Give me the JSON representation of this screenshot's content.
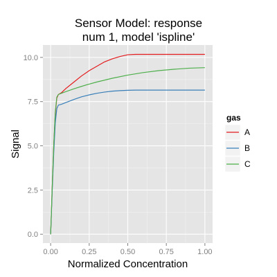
{
  "chart_data": {
    "type": "line",
    "title_lines": [
      "Sensor Model: response",
      "num 1, model 'ispline'"
    ],
    "xlabel": "Normalized Concentration",
    "ylabel": "Signal",
    "xlim": [
      -0.05,
      1.05
    ],
    "ylim": [
      -0.5,
      10.7
    ],
    "x_ticks": [
      0,
      0.25,
      0.5,
      0.75,
      1
    ],
    "x_tick_labels": [
      "0.00",
      "0.25",
      "0.50",
      "0.75",
      "1.00"
    ],
    "y_ticks": [
      0,
      2.5,
      5,
      7.5,
      10
    ],
    "y_tick_labels": [
      "0.0",
      "2.5",
      "5.0",
      "7.5",
      "10.0"
    ],
    "grid": true,
    "legend": {
      "title": "gas",
      "position": "right"
    },
    "series": [
      {
        "name": "A",
        "color": "#e41a1c",
        "x": [
          0,
          0.01,
          0.02,
          0.03,
          0.04,
          0.05,
          0.07,
          0.1,
          0.15,
          0.2,
          0.25,
          0.3,
          0.35,
          0.4,
          0.45,
          0.5,
          0.55,
          0.6,
          0.7,
          0.8,
          0.9,
          1.0
        ],
        "y": [
          0,
          2.6,
          5.0,
          6.8,
          7.7,
          7.9,
          8.0,
          8.25,
          8.6,
          8.95,
          9.25,
          9.5,
          9.75,
          9.92,
          10.05,
          10.15,
          10.17,
          10.17,
          10.17,
          10.17,
          10.17,
          10.17
        ]
      },
      {
        "name": "B",
        "color": "#377eb8",
        "x": [
          0,
          0.01,
          0.02,
          0.03,
          0.04,
          0.05,
          0.07,
          0.1,
          0.15,
          0.2,
          0.25,
          0.3,
          0.35,
          0.4,
          0.45,
          0.5,
          0.55,
          0.6,
          0.7,
          0.8,
          0.9,
          1.0
        ],
        "y": [
          0,
          2.4,
          4.6,
          6.3,
          7.1,
          7.3,
          7.35,
          7.45,
          7.62,
          7.77,
          7.88,
          7.97,
          8.04,
          8.09,
          8.12,
          8.14,
          8.15,
          8.15,
          8.15,
          8.15,
          8.15,
          8.15
        ]
      },
      {
        "name": "C",
        "color": "#4daf4a",
        "x": [
          0,
          0.01,
          0.02,
          0.03,
          0.04,
          0.05,
          0.07,
          0.1,
          0.15,
          0.2,
          0.25,
          0.3,
          0.4,
          0.5,
          0.6,
          0.7,
          0.8,
          0.9,
          1.0
        ],
        "y": [
          0,
          2.6,
          5.0,
          6.9,
          7.75,
          7.9,
          7.97,
          8.07,
          8.22,
          8.36,
          8.49,
          8.61,
          8.82,
          9.0,
          9.14,
          9.25,
          9.33,
          9.39,
          9.42
        ]
      }
    ]
  }
}
